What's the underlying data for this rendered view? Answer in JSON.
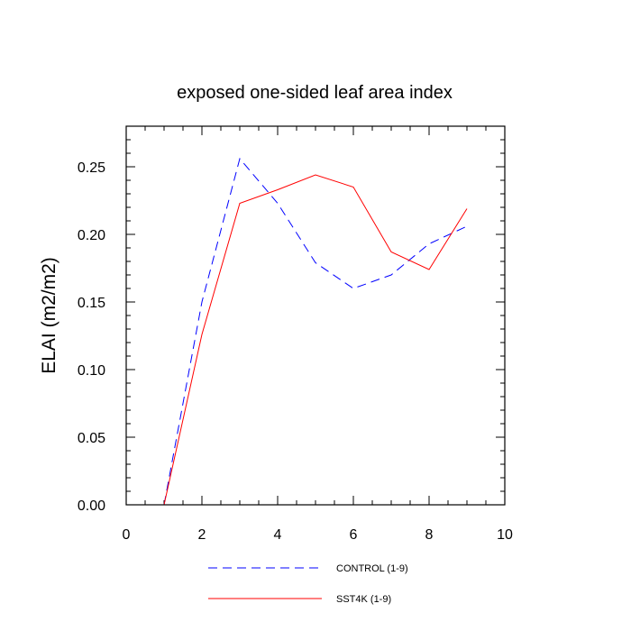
{
  "chart_data": {
    "type": "line",
    "title": "exposed one-sided leaf area index",
    "xlabel": "",
    "ylabel": "ELAI  (m2/m2)",
    "xlim": [
      0,
      10
    ],
    "ylim": [
      0,
      0.28
    ],
    "xticks": [
      0,
      2,
      4,
      6,
      8,
      10
    ],
    "xtick_labels": [
      "0",
      "2",
      "4",
      "6",
      "8",
      "10"
    ],
    "yticks": [
      0,
      0.05,
      0.1,
      0.15,
      0.2,
      0.25
    ],
    "ytick_labels": [
      "0.00",
      "0.05",
      "0.10",
      "0.15",
      "0.20",
      "0.25"
    ],
    "grid": false,
    "legend_position": "bottom",
    "x": [
      1,
      2,
      3,
      4,
      5,
      6,
      7,
      8,
      9
    ],
    "series": [
      {
        "name": "CONTROL (1-9)",
        "color": "#0000ff",
        "dash": "dashed",
        "values": [
          0.0,
          0.15,
          0.256,
          0.223,
          0.179,
          0.16,
          0.17,
          0.193,
          0.206
        ]
      },
      {
        "name": "SST4K (1-9)",
        "color": "#ff0000",
        "dash": "solid",
        "values": [
          0.0,
          0.126,
          0.223,
          0.233,
          0.244,
          0.235,
          0.187,
          0.174,
          0.219
        ]
      }
    ]
  }
}
